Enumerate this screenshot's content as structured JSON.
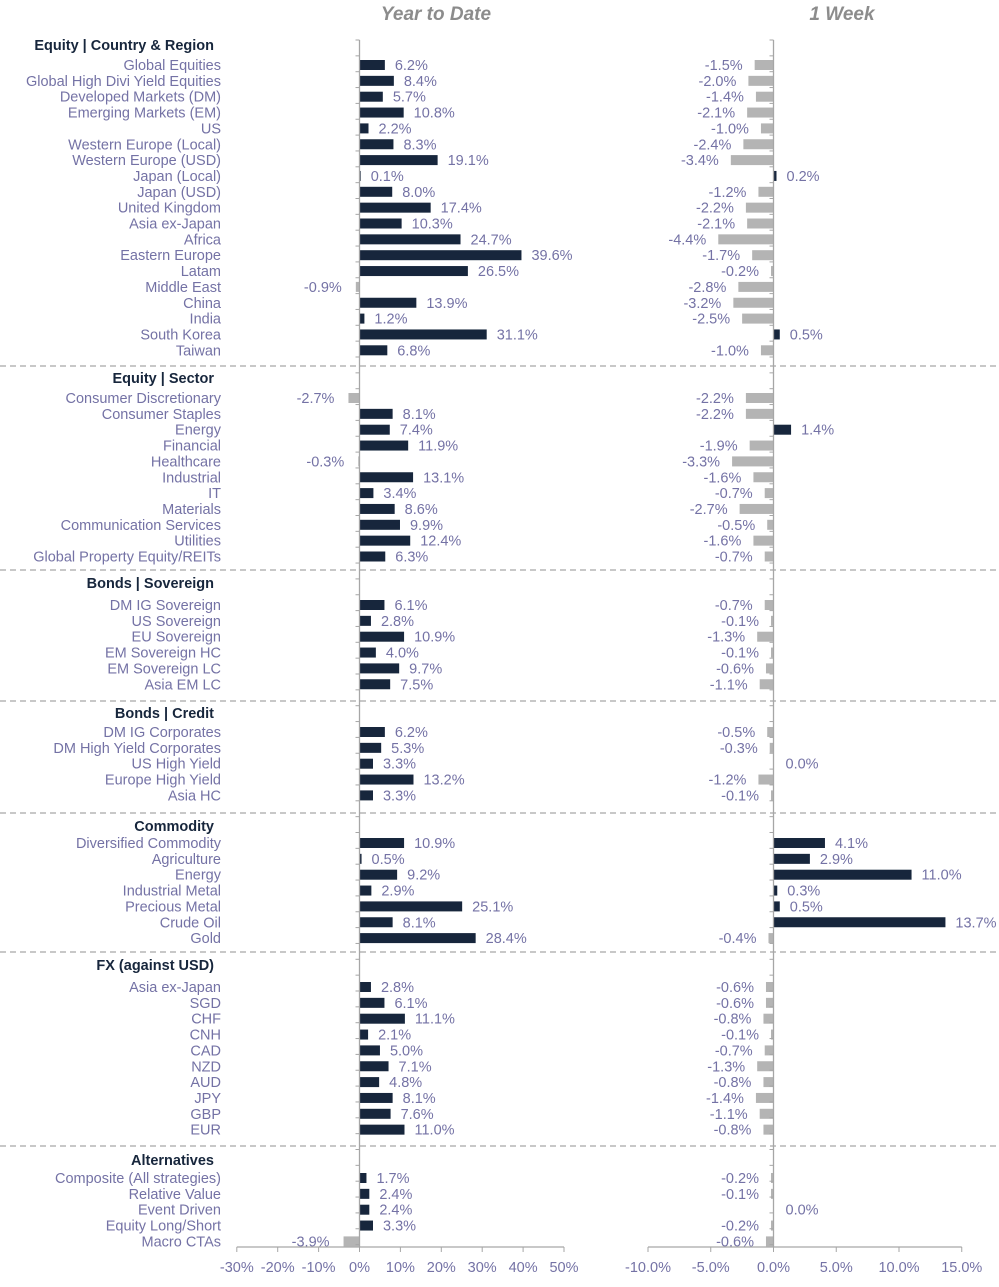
{
  "chart_data": {
    "type": "bar",
    "orientation": "horizontal",
    "panels": [
      {
        "title": "Year to Date",
        "xlim": [
          -30,
          50
        ],
        "ticks": [
          -30,
          -20,
          -10,
          0,
          10,
          20,
          30,
          40,
          50
        ],
        "tick_labels": [
          "-30%",
          "-20%",
          "-10%",
          "0%",
          "10%",
          "20%",
          "30%",
          "40%",
          "50%"
        ]
      },
      {
        "title": "1 Week",
        "xlim": [
          -10,
          15
        ],
        "ticks": [
          -10,
          -5,
          0,
          5,
          10,
          15
        ],
        "tick_labels": [
          "-10.0%",
          "-5.0%",
          "0.0%",
          "5.0%",
          "10.0%",
          "15.0%"
        ]
      }
    ],
    "colors": {
      "positive": "#17263c",
      "negative": "#b4b4b4",
      "category_text": "#7472a5",
      "section_text": "#17263c"
    },
    "sections": [
      {
        "title": "Equity | Country & Region",
        "rows": [
          {
            "name": "Global Equities",
            "ytd": 6.2,
            "ytd_label": "6.2%",
            "wk": -1.5,
            "wk_label": "-1.5%"
          },
          {
            "name": "Global High Divi Yield Equities",
            "ytd": 8.4,
            "ytd_label": "8.4%",
            "wk": -2.0,
            "wk_label": "-2.0%"
          },
          {
            "name": "Developed Markets (DM)",
            "ytd": 5.7,
            "ytd_label": "5.7%",
            "wk": -1.4,
            "wk_label": "-1.4%"
          },
          {
            "name": "Emerging Markets (EM)",
            "ytd": 10.8,
            "ytd_label": "10.8%",
            "wk": -2.1,
            "wk_label": "-2.1%"
          },
          {
            "name": "US",
            "ytd": 2.2,
            "ytd_label": "2.2%",
            "wk": -1.0,
            "wk_label": "-1.0%"
          },
          {
            "name": "Western Europe (Local)",
            "ytd": 8.3,
            "ytd_label": "8.3%",
            "wk": -2.4,
            "wk_label": "-2.4%"
          },
          {
            "name": "Western Europe (USD)",
            "ytd": 19.1,
            "ytd_label": "19.1%",
            "wk": -3.4,
            "wk_label": "-3.4%"
          },
          {
            "name": "Japan (Local)",
            "ytd": 0.1,
            "ytd_label": "0.1%",
            "wk": 0.2,
            "wk_label": "0.2%"
          },
          {
            "name": "Japan (USD)",
            "ytd": 8.0,
            "ytd_label": "8.0%",
            "wk": -1.2,
            "wk_label": "-1.2%"
          },
          {
            "name": "United Kingdom",
            "ytd": 17.4,
            "ytd_label": "17.4%",
            "wk": -2.2,
            "wk_label": "-2.2%"
          },
          {
            "name": "Asia ex-Japan",
            "ytd": 10.3,
            "ytd_label": "10.3%",
            "wk": -2.1,
            "wk_label": "-2.1%"
          },
          {
            "name": "Africa",
            "ytd": 24.7,
            "ytd_label": "24.7%",
            "wk": -4.4,
            "wk_label": "-4.4%"
          },
          {
            "name": "Eastern Europe",
            "ytd": 39.6,
            "ytd_label": "39.6%",
            "wk": -1.7,
            "wk_label": "-1.7%"
          },
          {
            "name": "Latam",
            "ytd": 26.5,
            "ytd_label": "26.5%",
            "wk": -0.2,
            "wk_label": "-0.2%"
          },
          {
            "name": "Middle East",
            "ytd": -0.9,
            "ytd_label": "-0.9%",
            "wk": -2.8,
            "wk_label": "-2.8%"
          },
          {
            "name": "China",
            "ytd": 13.9,
            "ytd_label": "13.9%",
            "wk": -3.2,
            "wk_label": "-3.2%"
          },
          {
            "name": "India",
            "ytd": 1.2,
            "ytd_label": "1.2%",
            "wk": -2.5,
            "wk_label": "-2.5%"
          },
          {
            "name": "South Korea",
            "ytd": 31.1,
            "ytd_label": "31.1%",
            "wk": 0.5,
            "wk_label": "0.5%"
          },
          {
            "name": "Taiwan",
            "ytd": 6.8,
            "ytd_label": "6.8%",
            "wk": -1.0,
            "wk_label": "-1.0%"
          }
        ]
      },
      {
        "title": "Equity | Sector",
        "rows": [
          {
            "name": "Consumer Discretionary",
            "ytd": -2.7,
            "ytd_label": "-2.7%",
            "wk": -2.2,
            "wk_label": "-2.2%"
          },
          {
            "name": "Consumer Staples",
            "ytd": 8.1,
            "ytd_label": "8.1%",
            "wk": -2.2,
            "wk_label": "-2.2%"
          },
          {
            "name": "Energy",
            "ytd": 7.4,
            "ytd_label": "7.4%",
            "wk": 1.4,
            "wk_label": "1.4%"
          },
          {
            "name": "Financial",
            "ytd": 11.9,
            "ytd_label": "11.9%",
            "wk": -1.9,
            "wk_label": "-1.9%"
          },
          {
            "name": "Healthcare",
            "ytd": -0.3,
            "ytd_label": "-0.3%",
            "wk": -3.3,
            "wk_label": "-3.3%"
          },
          {
            "name": "Industrial",
            "ytd": 13.1,
            "ytd_label": "13.1%",
            "wk": -1.6,
            "wk_label": "-1.6%"
          },
          {
            "name": "IT",
            "ytd": 3.4,
            "ytd_label": "3.4%",
            "wk": -0.7,
            "wk_label": "-0.7%"
          },
          {
            "name": "Materials",
            "ytd": 8.6,
            "ytd_label": "8.6%",
            "wk": -2.7,
            "wk_label": "-2.7%"
          },
          {
            "name": "Communication Services",
            "ytd": 9.9,
            "ytd_label": "9.9%",
            "wk": -0.5,
            "wk_label": "-0.5%"
          },
          {
            "name": "Utilities",
            "ytd": 12.4,
            "ytd_label": "12.4%",
            "wk": -1.6,
            "wk_label": "-1.6%"
          },
          {
            "name": "Global Property Equity/REITs",
            "ytd": 6.3,
            "ytd_label": "6.3%",
            "wk": -0.7,
            "wk_label": "-0.7%"
          }
        ]
      },
      {
        "title": "Bonds | Sovereign",
        "rows": [
          {
            "name": "DM IG Sovereign",
            "ytd": 6.1,
            "ytd_label": "6.1%",
            "wk": -0.7,
            "wk_label": "-0.7%"
          },
          {
            "name": "US Sovereign",
            "ytd": 2.8,
            "ytd_label": "2.8%",
            "wk": -0.1,
            "wk_label": "-0.1%"
          },
          {
            "name": "EU Sovereign",
            "ytd": 10.9,
            "ytd_label": "10.9%",
            "wk": -1.3,
            "wk_label": "-1.3%"
          },
          {
            "name": "EM Sovereign HC",
            "ytd": 4.0,
            "ytd_label": "4.0%",
            "wk": -0.1,
            "wk_label": "-0.1%"
          },
          {
            "name": "EM Sovereign LC",
            "ytd": 9.7,
            "ytd_label": "9.7%",
            "wk": -0.6,
            "wk_label": "-0.6%"
          },
          {
            "name": "Asia EM LC",
            "ytd": 7.5,
            "ytd_label": "7.5%",
            "wk": -1.1,
            "wk_label": "-1.1%"
          }
        ]
      },
      {
        "title": "Bonds | Credit",
        "rows": [
          {
            "name": "DM IG Corporates",
            "ytd": 6.2,
            "ytd_label": "6.2%",
            "wk": -0.5,
            "wk_label": "-0.5%"
          },
          {
            "name": "DM High Yield Corporates",
            "ytd": 5.3,
            "ytd_label": "5.3%",
            "wk": -0.3,
            "wk_label": "-0.3%"
          },
          {
            "name": "US High Yield",
            "ytd": 3.3,
            "ytd_label": "3.3%",
            "wk": 0.0,
            "wk_label": "0.0%"
          },
          {
            "name": "Europe High Yield",
            "ytd": 13.2,
            "ytd_label": "13.2%",
            "wk": -1.2,
            "wk_label": "-1.2%"
          },
          {
            "name": "Asia HC",
            "ytd": 3.3,
            "ytd_label": "3.3%",
            "wk": -0.1,
            "wk_label": "-0.1%"
          }
        ]
      },
      {
        "title": "Commodity",
        "rows": [
          {
            "name": "Diversified Commodity",
            "ytd": 10.9,
            "ytd_label": "10.9%",
            "wk": 4.1,
            "wk_label": "4.1%"
          },
          {
            "name": "Agriculture",
            "ytd": 0.5,
            "ytd_label": "0.5%",
            "wk": 2.9,
            "wk_label": "2.9%"
          },
          {
            "name": "Energy",
            "ytd": 9.2,
            "ytd_label": "9.2%",
            "wk": 11.0,
            "wk_label": "11.0%"
          },
          {
            "name": "Industrial Metal",
            "ytd": 2.9,
            "ytd_label": "2.9%",
            "wk": 0.3,
            "wk_label": "0.3%"
          },
          {
            "name": "Precious Metal",
            "ytd": 25.1,
            "ytd_label": "25.1%",
            "wk": 0.5,
            "wk_label": "0.5%"
          },
          {
            "name": "Crude Oil",
            "ytd": 8.1,
            "ytd_label": "8.1%",
            "wk": 13.7,
            "wk_label": "13.7%"
          },
          {
            "name": "Gold",
            "ytd": 28.4,
            "ytd_label": "28.4%",
            "wk": -0.4,
            "wk_label": "-0.4%"
          }
        ]
      },
      {
        "title": "FX (against USD)",
        "rows": [
          {
            "name": "Asia ex-Japan",
            "ytd": 2.8,
            "ytd_label": "2.8%",
            "wk": -0.6,
            "wk_label": "-0.6%"
          },
          {
            "name": "SGD",
            "ytd": 6.1,
            "ytd_label": "6.1%",
            "wk": -0.6,
            "wk_label": "-0.6%"
          },
          {
            "name": "CHF",
            "ytd": 11.1,
            "ytd_label": "11.1%",
            "wk": -0.8,
            "wk_label": "-0.8%"
          },
          {
            "name": "CNH",
            "ytd": 2.1,
            "ytd_label": "2.1%",
            "wk": -0.1,
            "wk_label": "-0.1%"
          },
          {
            "name": "CAD",
            "ytd": 5.0,
            "ytd_label": "5.0%",
            "wk": -0.7,
            "wk_label": "-0.7%"
          },
          {
            "name": "NZD",
            "ytd": 7.1,
            "ytd_label": "7.1%",
            "wk": -1.3,
            "wk_label": "-1.3%"
          },
          {
            "name": "AUD",
            "ytd": 4.8,
            "ytd_label": "4.8%",
            "wk": -0.8,
            "wk_label": "-0.8%"
          },
          {
            "name": "JPY",
            "ytd": 8.1,
            "ytd_label": "8.1%",
            "wk": -1.4,
            "wk_label": "-1.4%"
          },
          {
            "name": "GBP",
            "ytd": 7.6,
            "ytd_label": "7.6%",
            "wk": -1.1,
            "wk_label": "-1.1%"
          },
          {
            "name": "EUR",
            "ytd": 11.0,
            "ytd_label": "11.0%",
            "wk": -0.8,
            "wk_label": "-0.8%"
          }
        ]
      },
      {
        "title": "Alternatives",
        "rows": [
          {
            "name": "Composite (All strategies)",
            "ytd": 1.7,
            "ytd_label": "1.7%",
            "wk": -0.2,
            "wk_label": "-0.2%"
          },
          {
            "name": "Relative Value",
            "ytd": 2.4,
            "ytd_label": "2.4%",
            "wk": -0.1,
            "wk_label": "-0.1%"
          },
          {
            "name": "Event Driven",
            "ytd": 2.4,
            "ytd_label": "2.4%",
            "wk": 0.0,
            "wk_label": "0.0%"
          },
          {
            "name": "Equity Long/Short",
            "ytd": 3.3,
            "ytd_label": "3.3%",
            "wk": -0.2,
            "wk_label": "-0.2%"
          },
          {
            "name": "Macro CTAs",
            "ytd": -3.9,
            "ytd_label": "-3.9%",
            "wk": -0.6,
            "wk_label": "-0.6%"
          }
        ]
      }
    ]
  }
}
